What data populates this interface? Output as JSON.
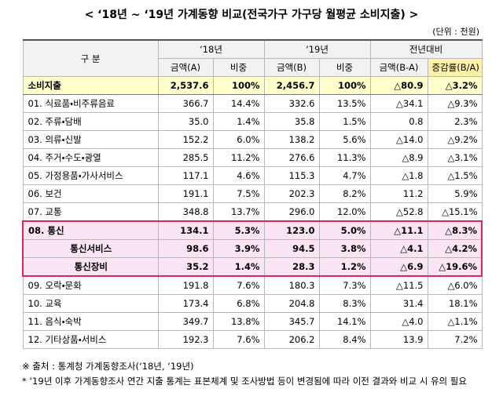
{
  "title": "< ‘18년 ~ ‘19년 가계동향 비교(전국가구 가구당 월평균 소비지출) >",
  "unit": "(단위 : 천원)",
  "table": {
    "header": {
      "category": "구 분",
      "groups": [
        "‘18년",
        "‘19년",
        "전년대비"
      ],
      "columns": [
        "금액(A)",
        "비중",
        "금액(B)",
        "비중",
        "금액(B-A)",
        "증감률(B/A)"
      ]
    },
    "rows": [
      [
        "소비지출",
        "2,537.6",
        "100%",
        "2,456.7",
        "100%",
        "△80.9",
        "△3.2%"
      ],
      [
        "01. 식료품・비주류음료",
        "366.7",
        "14.4%",
        "332.6",
        "13.5%",
        "△34.1",
        "△9.3%"
      ],
      [
        "02. 주류・담배",
        "35.0",
        "1.4%",
        "35.8",
        "1.5%",
        "0.8",
        "2.3%"
      ],
      [
        "03. 의류・신발",
        "152.2",
        "6.0%",
        "138.2",
        "5.6%",
        "△14.0",
        "△9.2%"
      ],
      [
        "04. 주거・수도・광열",
        "285.5",
        "11.2%",
        "276.6",
        "11.3%",
        "△8.9",
        "△3.1%"
      ],
      [
        "05. 가정용품・가사서비스",
        "117.1",
        "4.6%",
        "115.3",
        "4.7%",
        "△1.8",
        "△1.5%"
      ],
      [
        "06. 보건",
        "191.1",
        "7.5%",
        "202.3",
        "8.2%",
        "11.2",
        "5.9%"
      ],
      [
        "07. 교통",
        "348.8",
        "13.7%",
        "296.0",
        "12.0%",
        "△52.8",
        "△15.1%"
      ],
      [
        "08. 통신",
        "134.1",
        "5.3%",
        "123.0",
        "5.0%",
        "△11.1",
        "△8.3%"
      ],
      [
        "통신서비스",
        "98.6",
        "3.9%",
        "94.5",
        "3.8%",
        "△4.1",
        "△4.2%"
      ],
      [
        "통신장비",
        "35.2",
        "1.4%",
        "28.3",
        "1.2%",
        "△6.9",
        "△19.6%"
      ],
      [
        "09. 오락・문화",
        "191.8",
        "7.6%",
        "180.3",
        "7.3%",
        "△11.5",
        "△6.0%"
      ],
      [
        "10. 교육",
        "173.4",
        "6.8%",
        "204.8",
        "8.3%",
        "31.4",
        "18.1%"
      ],
      [
        "11. 음식・숙박",
        "349.7",
        "13.8%",
        "345.7",
        "14.1%",
        "△4.0",
        "△1.1%"
      ],
      [
        "12. 기타상품・서비스",
        "192.3",
        "7.6%",
        "206.2",
        "8.4%",
        "13.9",
        "7.2%"
      ]
    ]
  },
  "notes": [
    "※ 출처 : 통계청 가계동향조사(‘18년, ‘19년)",
    "* ‘19년 이후 가계동향조사 연간 지출 통계는 표본체계 및 조사방법 등이 변경됨에 따라 이전 결과와 비교 시 유의 필요"
  ]
}
